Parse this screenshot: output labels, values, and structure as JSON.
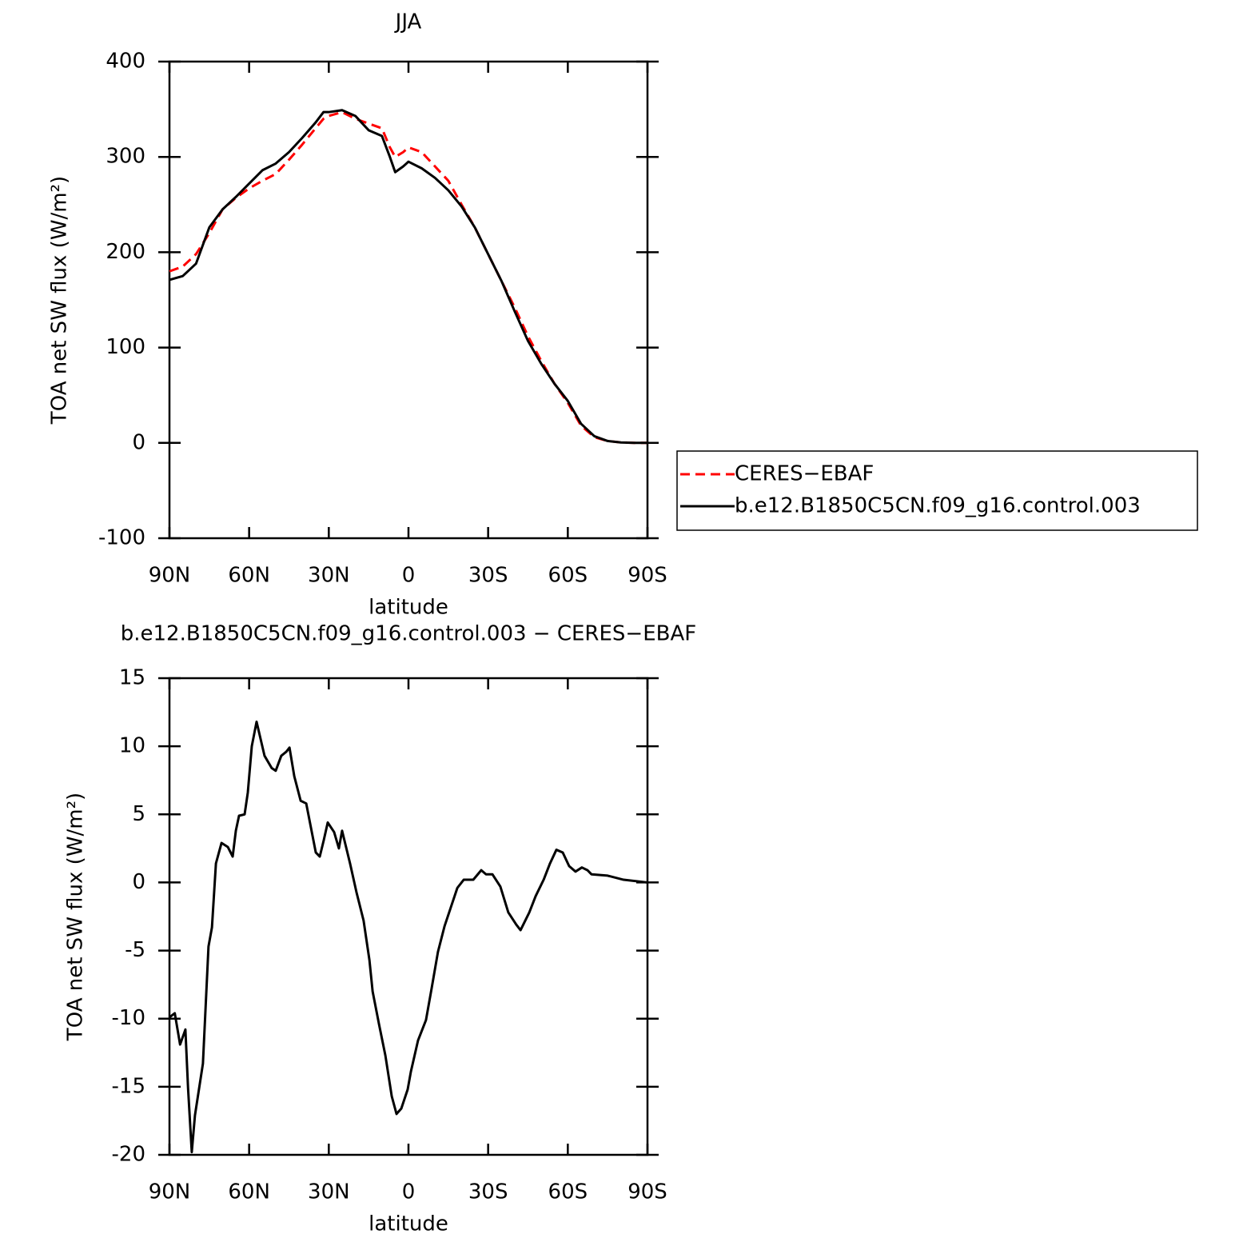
{
  "chart_data": [
    {
      "type": "line",
      "title": "JJA",
      "xlabel": "latitude",
      "ylabel": "TOA net SW flux (W/m²)",
      "x": [
        90,
        85,
        80,
        75,
        70,
        65,
        60,
        55,
        50,
        45,
        40,
        35,
        32,
        30,
        25,
        20,
        15,
        10,
        7,
        5,
        2,
        0,
        -5,
        -10,
        -15,
        -20,
        -25,
        -30,
        -35,
        -40,
        -45,
        -50,
        -55,
        -60,
        -65,
        -70,
        -75,
        -80,
        -85,
        -90
      ],
      "series": [
        {
          "name": "CERES−EBAF",
          "color": "#ff0000",
          "line_style": "dashed",
          "values": [
            180,
            185,
            198,
            220,
            245,
            257,
            267,
            275,
            282,
            297,
            313,
            330,
            340,
            343,
            347,
            340,
            335,
            330,
            310,
            300,
            305,
            310,
            305,
            290,
            275,
            250,
            226,
            198,
            170,
            142,
            112,
            86,
            62,
            42,
            18,
            6,
            2,
            0.5,
            0,
            0
          ]
        },
        {
          "name": "b.e12.B1850C5CN.f09_g16.control.003",
          "color": "#000000",
          "line_style": "solid",
          "values": [
            171,
            175,
            188,
            226,
            245,
            258,
            272,
            286,
            293,
            305,
            320,
            336,
            347,
            347,
            349,
            343,
            328,
            322,
            300,
            284,
            290,
            295,
            288,
            278,
            265,
            248,
            226,
            198,
            170,
            138,
            107,
            83,
            62,
            44,
            20,
            7,
            2,
            0.5,
            0,
            0
          ]
        }
      ],
      "xlim": [
        90,
        -90
      ],
      "xticks": [
        {
          "value": 90,
          "label": "90N"
        },
        {
          "value": 60,
          "label": "60N"
        },
        {
          "value": 30,
          "label": "30N"
        },
        0,
        {
          "value": -30,
          "label": "30S"
        },
        {
          "value": -60,
          "label": "60S"
        },
        {
          "value": -90,
          "label": "90S"
        }
      ],
      "ylim": [
        -100,
        400
      ],
      "yticks": [
        -100,
        0,
        100,
        200,
        300,
        400
      ],
      "legend": "right"
    },
    {
      "type": "line",
      "title": "b.e12.B1850C5CN.f09_g16.control.003 − CERES−EBAF",
      "xlabel": "latitude",
      "ylabel": "TOA net SW flux (W/m²)",
      "x": [
        90,
        88,
        86,
        84,
        83,
        81.6,
        80.4,
        77.4,
        75.3,
        74,
        72.5,
        70.4,
        68,
        66.2,
        65,
        63.8,
        61.7,
        60.5,
        59,
        57.2,
        54.2,
        51.5,
        50,
        47.9,
        46,
        44.8,
        43,
        40.6,
        38.5,
        34.9,
        33.4,
        31.9,
        30.4,
        28,
        26.2,
        25,
        22,
        19.6,
        16.9,
        14.7,
        13.5,
        11.1,
        8.7,
        6.3,
        4.5,
        2.7,
        0.3,
        -0.9,
        -3.6,
        -6.6,
        -8.7,
        -11.1,
        -13.6,
        -16,
        -18.4,
        -20.8,
        -24.4,
        -27.4,
        -29.2,
        -31.6,
        -34.6,
        -37.6,
        -40.6,
        -42.2,
        -45.5,
        -47.9,
        -50.9,
        -53.3,
        -55.7,
        -58.1,
        -60.5,
        -62.9,
        -65.3,
        -67.4,
        -68.9,
        -75,
        -81,
        -90
      ],
      "series": [
        {
          "name": null,
          "color": "#000000",
          "line_style": "solid",
          "values": [
            -9.9,
            -9.6,
            -11.9,
            -10.8,
            -15.1,
            -19.8,
            -17.1,
            -13.3,
            -4.7,
            -3.3,
            1.4,
            2.9,
            2.6,
            1.9,
            3.8,
            4.9,
            5.0,
            6.6,
            10.0,
            11.8,
            9.3,
            8.4,
            8.2,
            9.3,
            9.6,
            9.9,
            7.8,
            6.0,
            5.8,
            2.2,
            1.9,
            3.1,
            4.4,
            3.7,
            2.5,
            3.8,
            1.4,
            -0.7,
            -2.8,
            -5.7,
            -8.0,
            -10.4,
            -12.7,
            -15.7,
            -17.0,
            -16.6,
            -15.2,
            -13.9,
            -11.6,
            -10.1,
            -7.8,
            -5.1,
            -3.2,
            -1.8,
            -0.4,
            0.2,
            0.2,
            0.9,
            0.6,
            0.6,
            -0.3,
            -2.2,
            -3.1,
            -3.5,
            -2.2,
            -1.0,
            0.2,
            1.4,
            2.4,
            2.2,
            1.2,
            0.8,
            1.1,
            0.9,
            0.6,
            0.5,
            0.2,
            0
          ]
        }
      ],
      "xlim": [
        90,
        -90
      ],
      "xticks": [
        {
          "value": 90,
          "label": "90N"
        },
        {
          "value": 60,
          "label": "60N"
        },
        {
          "value": 30,
          "label": "30N"
        },
        0,
        {
          "value": -30,
          "label": "30S"
        },
        {
          "value": -60,
          "label": "60S"
        },
        {
          "value": -90,
          "label": "90S"
        }
      ],
      "ylim": [
        -20,
        15
      ],
      "yticks": [
        -20,
        -15,
        -10,
        -5,
        0,
        5,
        10,
        15
      ]
    }
  ]
}
